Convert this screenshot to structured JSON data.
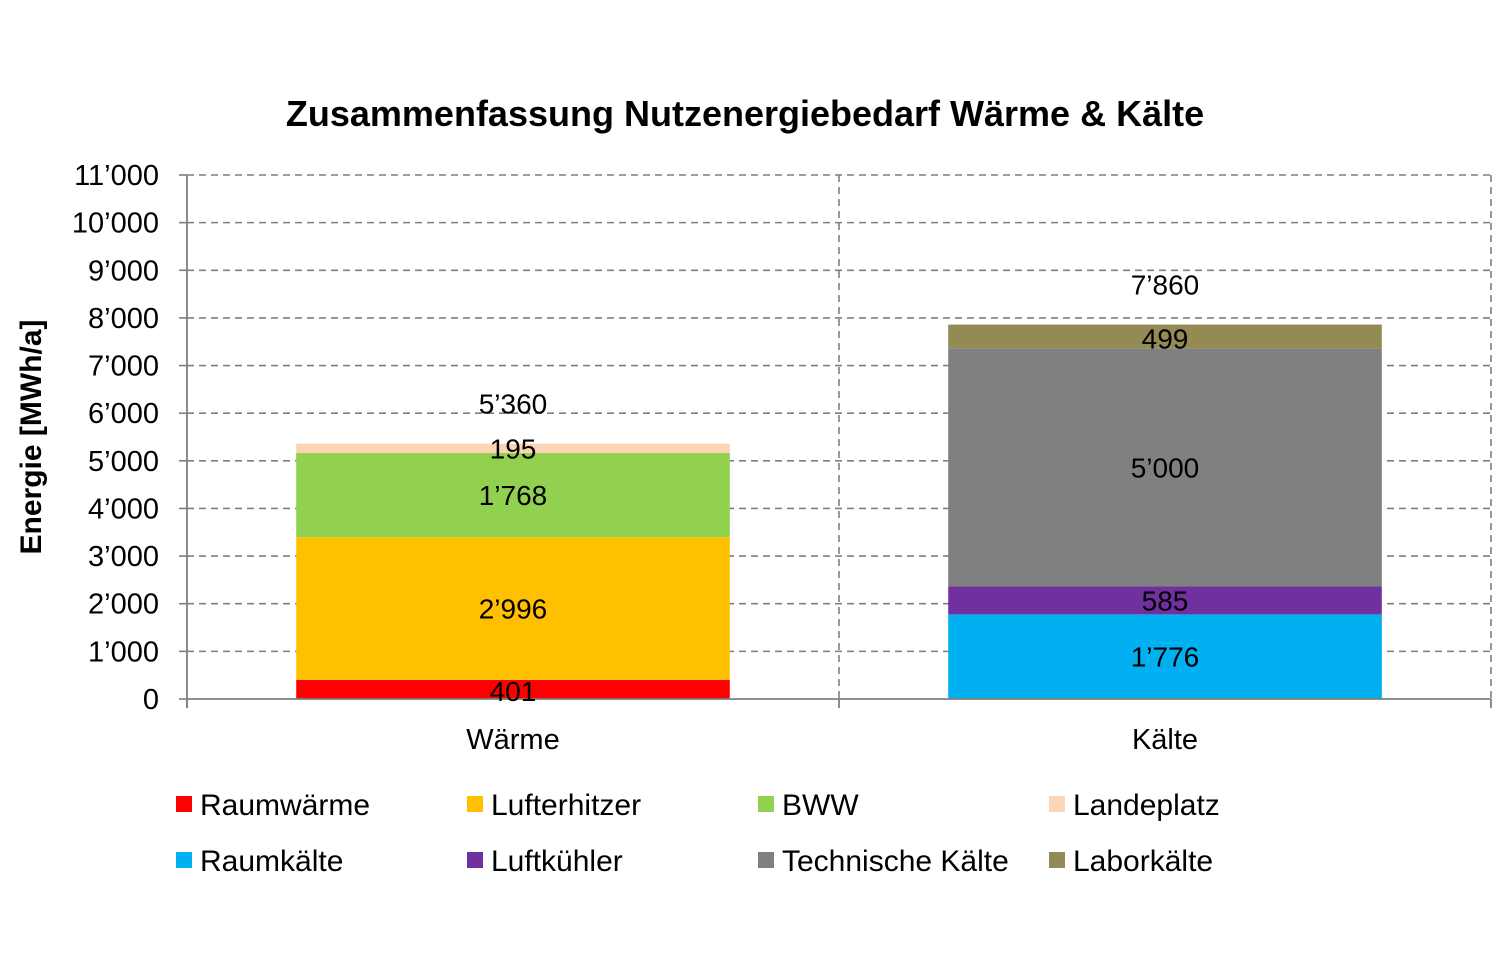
{
  "chart_data": {
    "type": "bar",
    "stacked": true,
    "title": "Zusammenfassung Nutzenergiebedarf Wärme & Kälte",
    "ylabel": "Energie [MWh/a]",
    "xlabel": "",
    "ylim": [
      0,
      11000
    ],
    "grid": true,
    "legend_position": "bottom",
    "categories": [
      "Wärme",
      "Kälte"
    ],
    "y_ticks": [
      {
        "value": 0,
        "label": "0"
      },
      {
        "value": 1000,
        "label": "1’000"
      },
      {
        "value": 2000,
        "label": "2’000"
      },
      {
        "value": 3000,
        "label": "3’000"
      },
      {
        "value": 4000,
        "label": "4’000"
      },
      {
        "value": 5000,
        "label": "5’000"
      },
      {
        "value": 6000,
        "label": "6’000"
      },
      {
        "value": 7000,
        "label": "7’000"
      },
      {
        "value": 8000,
        "label": "8’000"
      },
      {
        "value": 9000,
        "label": "9’000"
      },
      {
        "value": 10000,
        "label": "10’000"
      },
      {
        "value": 11000,
        "label": "11’000"
      }
    ],
    "series": [
      {
        "name": "Raumwärme",
        "color": "#ff0000",
        "values": [
          401,
          0
        ],
        "labels": [
          "401",
          ""
        ]
      },
      {
        "name": "Lufterhitzer",
        "color": "#ffc000",
        "values": [
          2996,
          0
        ],
        "labels": [
          "2’996",
          ""
        ]
      },
      {
        "name": "BWW",
        "color": "#92d050",
        "values": [
          1768,
          0
        ],
        "labels": [
          "1’768",
          ""
        ]
      },
      {
        "name": "Landeplatz",
        "color": "#fbd5b5",
        "values": [
          195,
          0
        ],
        "labels": [
          "195",
          ""
        ]
      },
      {
        "name": "Raumkälte",
        "color": "#00b0f0",
        "values": [
          0,
          1776
        ],
        "labels": [
          "",
          "1’776"
        ]
      },
      {
        "name": "Luftkühler",
        "color": "#7030a0",
        "values": [
          0,
          585
        ],
        "labels": [
          "",
          "585"
        ]
      },
      {
        "name": "Technische Kälte",
        "color": "#808080",
        "values": [
          0,
          5000
        ],
        "labels": [
          "",
          "5’000"
        ]
      },
      {
        "name": "Laborkälte",
        "color": "#948a54",
        "values": [
          0,
          499
        ],
        "labels": [
          "",
          "499"
        ]
      }
    ],
    "totals": [
      {
        "value": 5360,
        "label": "5’360"
      },
      {
        "value": 7860,
        "label": "7’860"
      }
    ]
  }
}
